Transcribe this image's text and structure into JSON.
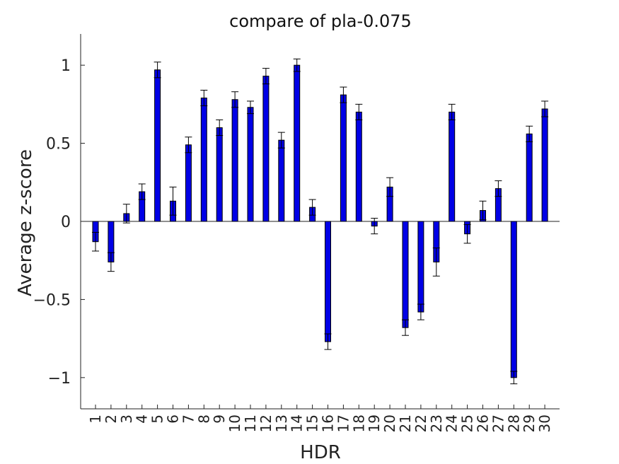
{
  "chart_data": {
    "type": "bar",
    "title": "compare of pla-0.075",
    "xlabel": "HDR",
    "ylabel": "Average z-score",
    "ylim": [
      -1.2,
      1.2
    ],
    "yticks": [
      -1,
      -0.5,
      0,
      0.5,
      1
    ],
    "ytick_labels": [
      "−1",
      "−0.5",
      "0",
      "0.5",
      "1"
    ],
    "grid": false,
    "bar_color": "#0000e6",
    "error_color": "#000000",
    "categories": [
      "1",
      "2",
      "3",
      "4",
      "5",
      "6",
      "7",
      "8",
      "9",
      "10",
      "11",
      "12",
      "13",
      "14",
      "15",
      "16",
      "17",
      "18",
      "19",
      "20",
      "21",
      "22",
      "23",
      "24",
      "25",
      "26",
      "27",
      "28",
      "29",
      "30"
    ],
    "values": [
      -0.13,
      -0.26,
      0.05,
      0.19,
      0.97,
      0.13,
      0.49,
      0.79,
      0.6,
      0.78,
      0.73,
      0.93,
      0.52,
      1.0,
      0.09,
      -0.77,
      0.81,
      0.7,
      -0.03,
      0.22,
      -0.68,
      -0.58,
      -0.26,
      0.7,
      -0.08,
      0.07,
      0.21,
      -1.0,
      0.56,
      0.72
    ],
    "errors": [
      0.06,
      0.06,
      0.06,
      0.05,
      0.05,
      0.09,
      0.05,
      0.05,
      0.05,
      0.05,
      0.04,
      0.05,
      0.05,
      0.04,
      0.05,
      0.05,
      0.05,
      0.05,
      0.05,
      0.06,
      0.05,
      0.05,
      0.09,
      0.05,
      0.06,
      0.06,
      0.05,
      0.04,
      0.05,
      0.05
    ]
  }
}
